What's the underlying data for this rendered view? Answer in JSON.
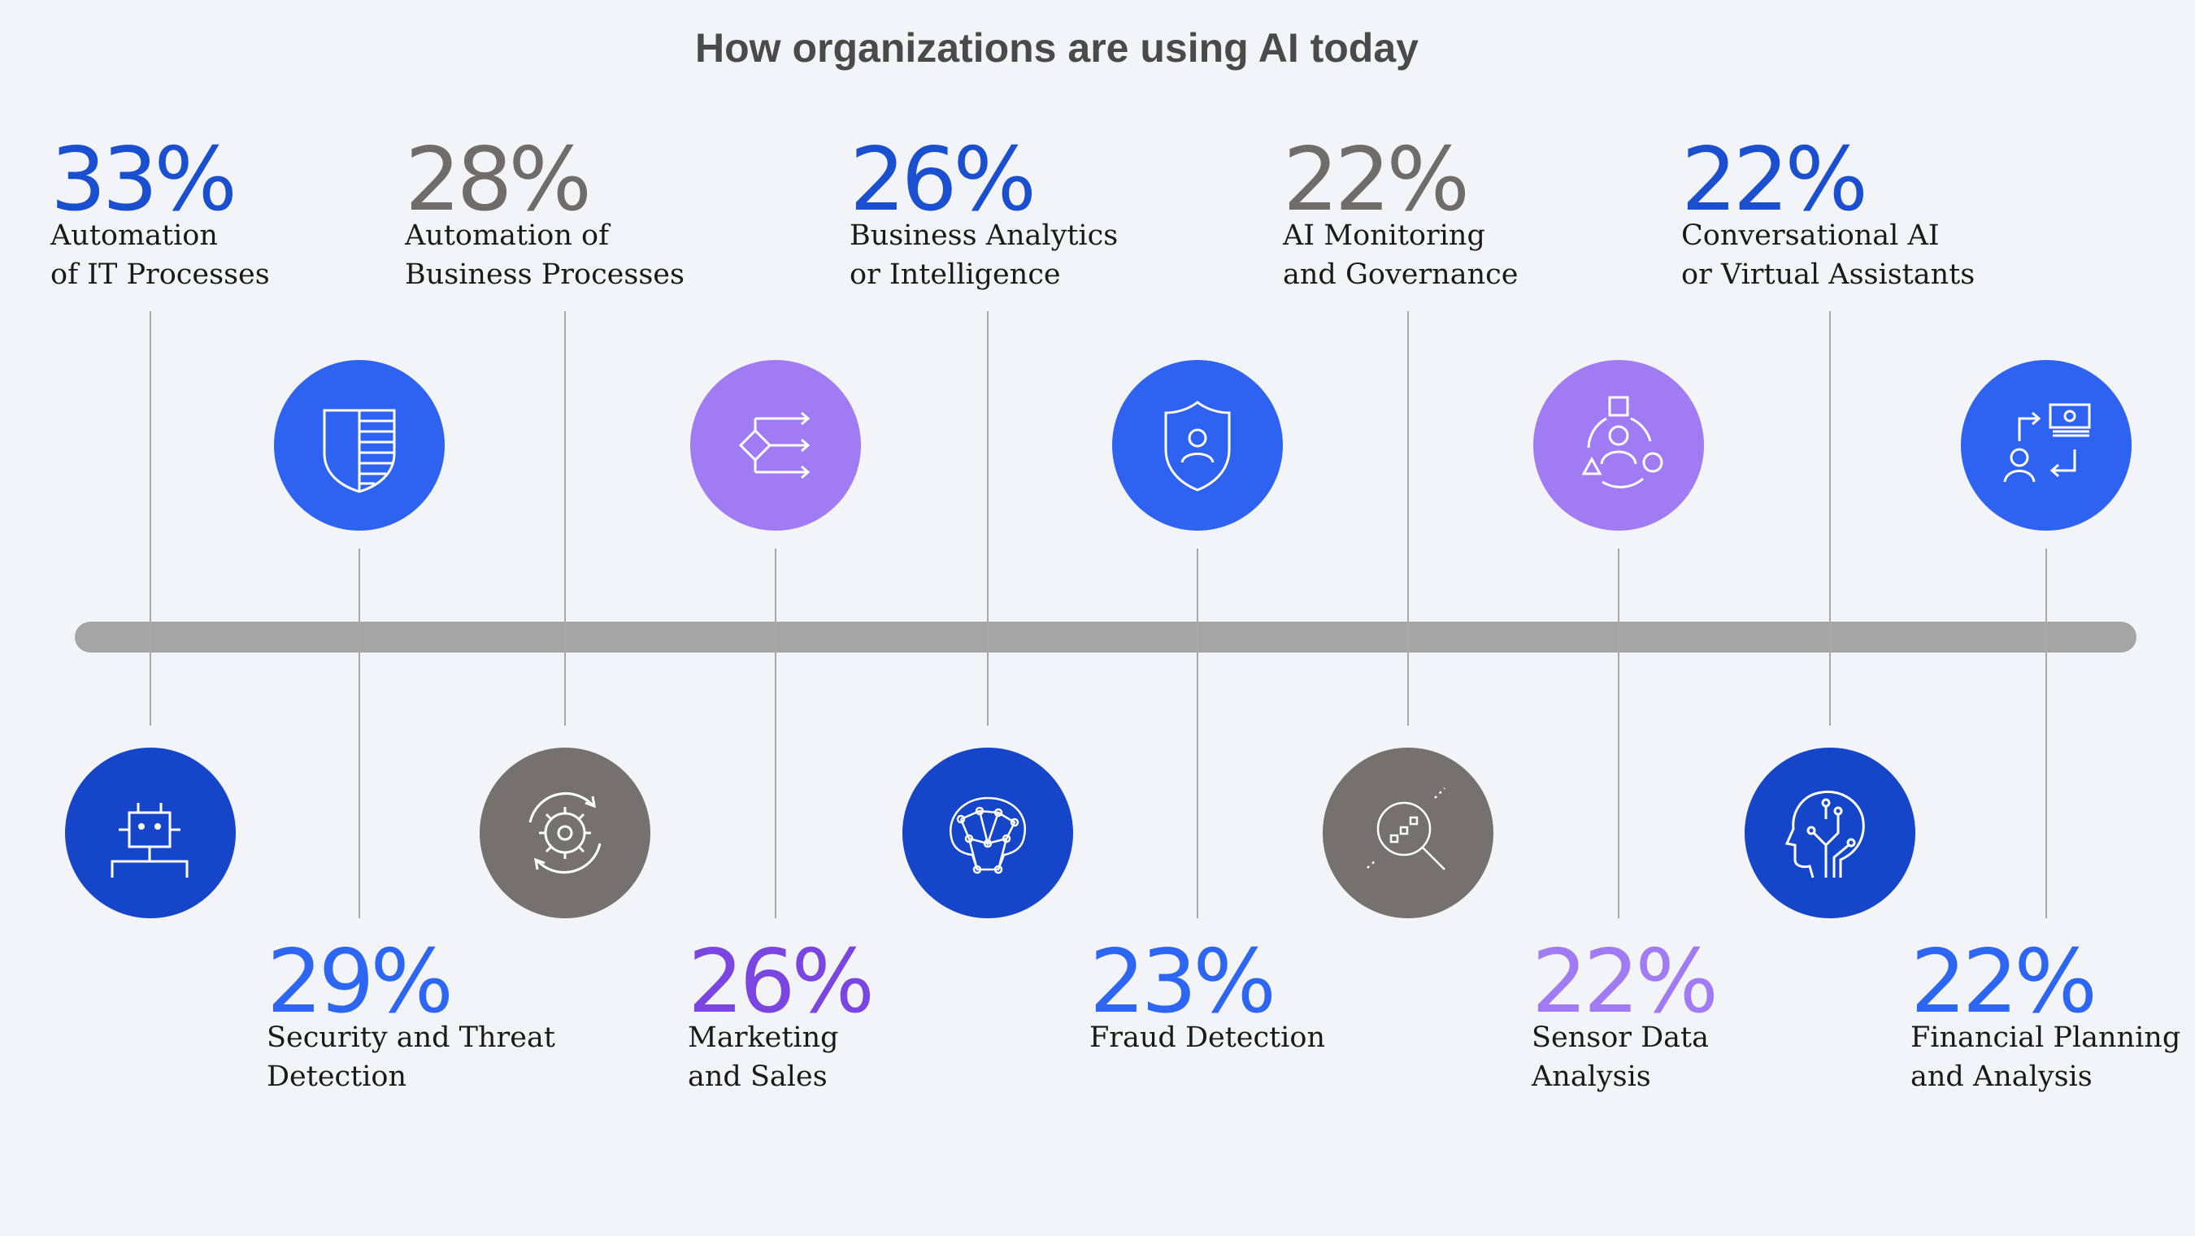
{
  "chart_data": {
    "type": "timeline",
    "title": "How organizations are using AI today",
    "items": [
      {
        "value": 33,
        "value_label": "33%",
        "label_lines": [
          "Automation",
          "of IT Processes"
        ],
        "position": "top",
        "color": "#1a4fd0",
        "circle_color": "#1545c8",
        "icon": "robot-icon"
      },
      {
        "value": 29,
        "value_label": "29%",
        "label_lines": [
          "Security and Threat",
          "Detection"
        ],
        "position": "bottom",
        "color": "#2d66f2",
        "circle_color": "#2e63f2",
        "icon": "shield-striped-icon"
      },
      {
        "value": 28,
        "value_label": "28%",
        "label_lines": [
          "Automation of",
          "Business Processes"
        ],
        "position": "top",
        "color": "#6f6c6a",
        "circle_color": "#75716f",
        "icon": "gear-cycle-icon"
      },
      {
        "value": 26,
        "value_label": "26%",
        "label_lines": [
          "Marketing",
          "and Sales"
        ],
        "position": "bottom",
        "color": "#7a45e0",
        "circle_color": "#a07bf4",
        "icon": "flow-arrows-icon"
      },
      {
        "value": 26,
        "value_label": "26%",
        "label_lines": [
          "Business Analytics",
          "or Intelligence"
        ],
        "position": "top",
        "color": "#1a4fd0",
        "circle_color": "#1545c8",
        "icon": "brain-network-icon"
      },
      {
        "value": 23,
        "value_label": "23%",
        "label_lines": [
          "Fraud Detection"
        ],
        "position": "bottom",
        "color": "#2d66f2",
        "circle_color": "#2e63f2",
        "icon": "user-shield-icon"
      },
      {
        "value": 22,
        "value_label": "22%",
        "label_lines": [
          "AI Monitoring",
          "and Governance"
        ],
        "position": "top",
        "color": "#6f6c6a",
        "circle_color": "#75716f",
        "icon": "magnifier-data-icon"
      },
      {
        "value": 22,
        "value_label": "22%",
        "label_lines": [
          "Sensor Data",
          "Analysis"
        ],
        "position": "bottom",
        "color": "#a07bf4",
        "circle_color": "#a07bf4",
        "icon": "people-shapes-icon"
      },
      {
        "value": 22,
        "value_label": "22%",
        "label_lines": [
          "Conversational AI",
          "or Virtual Assistants"
        ],
        "position": "top",
        "color": "#1a4fd0",
        "circle_color": "#1545c8",
        "icon": "head-circuit-icon"
      },
      {
        "value": 22,
        "value_label": "22%",
        "label_lines": [
          "Financial Planning",
          "and Analysis"
        ],
        "position": "bottom",
        "color": "#2d66f2",
        "circle_color": "#2e63f2",
        "icon": "money-transfer-icon"
      }
    ],
    "axis_color": "#a6a6a6",
    "background": "#f2f4f8"
  }
}
